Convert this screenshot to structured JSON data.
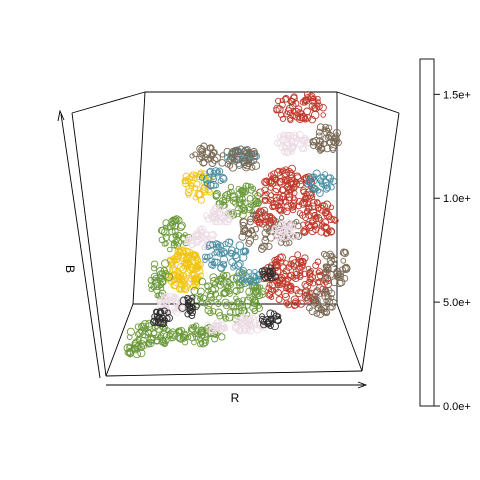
{
  "chart_data": {
    "type": "scatter",
    "plot_kind": "3d-scatter",
    "point_shape": "open-circle",
    "xlabel": "R",
    "ylabel": "B",
    "colorbar": {
      "ticks": [
        0.0,
        50000,
        100000,
        150000
      ],
      "tick_labels": [
        "0.0e+",
        "5.0e+",
        "1.0e+",
        "1.5e+"
      ],
      "range": [
        0,
        167000
      ]
    },
    "color_clusters": [
      {
        "color": "#c0392b",
        "hex_name": "red"
      },
      {
        "color": "#f1c40f",
        "hex_name": "yellow"
      },
      {
        "color": "#6b9a3a",
        "hex_name": "green"
      },
      {
        "color": "#4a8fa3",
        "hex_name": "teal"
      },
      {
        "color": "#ecdbe4",
        "hex_name": "pale-pink"
      },
      {
        "color": "#2e2e2e",
        "hex_name": "black"
      },
      {
        "color": "#7a6a55",
        "hex_name": "brown-gray"
      }
    ]
  }
}
